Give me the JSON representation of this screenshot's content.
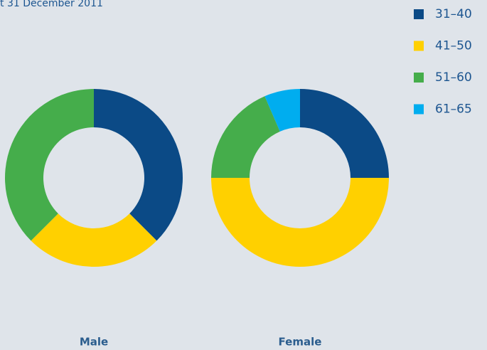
{
  "header": {
    "title": "t 31 December 2011"
  },
  "chart_data": [
    {
      "type": "donut",
      "title": "Male",
      "categories": [
        "31–40",
        "41–50",
        "51–60",
        "61–65"
      ],
      "colors": [
        "#0b4a86",
        "#ffd000",
        "#45ad4b",
        "#00adef"
      ],
      "values": [
        37.5,
        25,
        37.5,
        0
      ]
    },
    {
      "type": "donut",
      "title": "Female",
      "categories": [
        "31–40",
        "41–50",
        "51–60",
        "61–65"
      ],
      "colors": [
        "#0b4a86",
        "#ffd000",
        "#45ad4b",
        "#00adef"
      ],
      "values": [
        25,
        50,
        18.5,
        6.5
      ]
    }
  ]
}
